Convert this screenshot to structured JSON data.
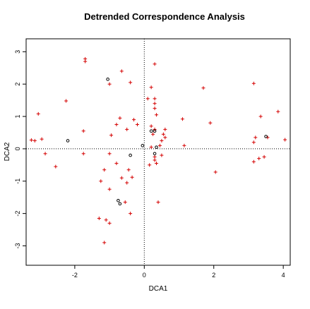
{
  "chart_data": {
    "type": "scatter",
    "title": "Detrended Correspondence Analysis",
    "xlabel": "DCA1",
    "ylabel": "DCA2",
    "xlim": [
      -3.4,
      4.2
    ],
    "ylim": [
      -3.6,
      3.4
    ],
    "xticks": [
      -2,
      0,
      2,
      4
    ],
    "yticks": [
      -3,
      -2,
      -1,
      0,
      1,
      2,
      3
    ],
    "reference_lines": {
      "x": 0,
      "y": 0,
      "style": "dotted"
    },
    "colors": {
      "species": "#d40000",
      "sites": "#000000"
    },
    "series": [
      {
        "marker": "plus",
        "color": "#d40000",
        "points": [
          [
            -1.7,
            2.78
          ],
          [
            -1.7,
            2.7
          ],
          [
            -0.65,
            2.4
          ],
          [
            -1.0,
            2.0
          ],
          [
            -0.4,
            2.05
          ],
          [
            0.3,
            2.62
          ],
          [
            -2.25,
            1.48
          ],
          [
            -3.05,
            1.08
          ],
          [
            -1.75,
            0.55
          ],
          [
            -0.8,
            0.75
          ],
          [
            -0.5,
            0.6
          ],
          [
            -0.3,
            0.9
          ],
          [
            -0.7,
            0.95
          ],
          [
            -0.2,
            0.75
          ],
          [
            -0.95,
            0.42
          ],
          [
            -3.25,
            0.27
          ],
          [
            -3.15,
            0.25
          ],
          [
            -2.95,
            0.3
          ],
          [
            -2.85,
            -0.15
          ],
          [
            -2.55,
            -0.55
          ],
          [
            -1.0,
            -0.15
          ],
          [
            -1.75,
            -0.15
          ],
          [
            -1.15,
            -0.65
          ],
          [
            -0.8,
            -0.45
          ],
          [
            -0.45,
            -0.65
          ],
          [
            -1.25,
            -1.0
          ],
          [
            -0.5,
            -1.05
          ],
          [
            -1.0,
            -1.25
          ],
          [
            -0.65,
            -0.9
          ],
          [
            -0.35,
            -0.88
          ],
          [
            -0.4,
            -2.0
          ],
          [
            -0.55,
            -1.65
          ],
          [
            -1.3,
            -2.15
          ],
          [
            -1.1,
            -2.2
          ],
          [
            -1.0,
            -2.3
          ],
          [
            -1.15,
            -2.9
          ],
          [
            0.2,
            1.9
          ],
          [
            0.1,
            1.55
          ],
          [
            0.3,
            1.55
          ],
          [
            0.3,
            1.4
          ],
          [
            0.3,
            1.25
          ],
          [
            0.35,
            1.05
          ],
          [
            0.2,
            0.7
          ],
          [
            0.3,
            0.6
          ],
          [
            0.6,
            0.6
          ],
          [
            0.55,
            0.45
          ],
          [
            0.6,
            0.35
          ],
          [
            0.5,
            0.25
          ],
          [
            0.45,
            0.1
          ],
          [
            0.15,
            -0.5
          ],
          [
            0.35,
            -0.45
          ],
          [
            0.3,
            -0.25
          ],
          [
            0.3,
            -0.35
          ],
          [
            0.5,
            -0.2
          ],
          [
            0.4,
            -1.65
          ],
          [
            0.2,
            0.05
          ],
          [
            1.1,
            0.92
          ],
          [
            1.7,
            1.88
          ],
          [
            1.9,
            0.8
          ],
          [
            1.15,
            0.1
          ],
          [
            2.05,
            -0.72
          ],
          [
            3.15,
            2.02
          ],
          [
            3.35,
            1.0
          ],
          [
            3.85,
            1.15
          ],
          [
            3.2,
            0.35
          ],
          [
            3.15,
            0.2
          ],
          [
            3.55,
            0.35
          ],
          [
            3.15,
            -0.4
          ],
          [
            3.3,
            -0.3
          ],
          [
            3.45,
            -0.25
          ],
          [
            4.05,
            0.28
          ],
          [
            0.25,
            0.45
          ]
        ]
      },
      {
        "marker": "circle",
        "color": "#000000",
        "points": [
          [
            -1.05,
            2.15
          ],
          [
            -2.2,
            0.25
          ],
          [
            -0.4,
            -0.2
          ],
          [
            -0.05,
            0.1
          ],
          [
            0.2,
            0.55
          ],
          [
            0.3,
            0.55
          ],
          [
            0.3,
            -0.15
          ],
          [
            0.35,
            0.05
          ],
          [
            3.5,
            0.38
          ],
          [
            -0.75,
            -1.6
          ],
          [
            -0.7,
            -1.7
          ]
        ]
      }
    ]
  }
}
